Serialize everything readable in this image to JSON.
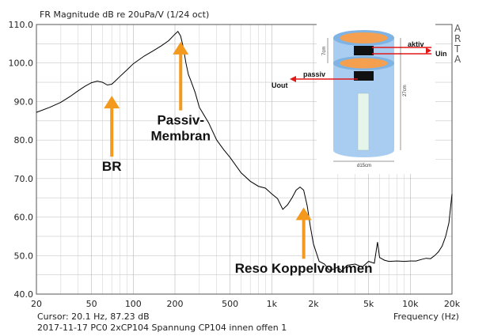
{
  "chart_data": {
    "type": "line",
    "title": "FR Magnitude dB re 20uPa/V (1/24 oct)",
    "xlabel": "Frequency (Hz)",
    "ylabel": "",
    "xscale": "log",
    "xlim": [
      20,
      20000
    ],
    "ylim": [
      40,
      110
    ],
    "grid": true,
    "y_ticks": [
      "40.0",
      "50.0",
      "60.0",
      "70.0",
      "80.0",
      "90.0",
      "100.0",
      "110.0"
    ],
    "x_ticks": [
      {
        "value": 20,
        "label": "20"
      },
      {
        "value": 50,
        "label": "50"
      },
      {
        "value": 100,
        "label": "100"
      },
      {
        "value": 200,
        "label": "200"
      },
      {
        "value": 500,
        "label": "500"
      },
      {
        "value": 1000,
        "label": "1k"
      },
      {
        "value": 2000,
        "label": "2k"
      },
      {
        "value": 5000,
        "label": "5k"
      },
      {
        "value": 10000,
        "label": "10k"
      },
      {
        "value": 20000,
        "label": "20k"
      }
    ],
    "series": [
      {
        "color": "#000000",
        "x": [
          20,
          25,
          30,
          35,
          40,
          45,
          50,
          55,
          60,
          65,
          70,
          75,
          80,
          90,
          100,
          120,
          140,
          160,
          180,
          200,
          210,
          220,
          230,
          240,
          250,
          260,
          280,
          300,
          350,
          400,
          450,
          500,
          600,
          700,
          800,
          900,
          1000,
          1100,
          1200,
          1300,
          1400,
          1500,
          1600,
          1700,
          1800,
          1900,
          2000,
          2200,
          2400,
          2600,
          2800,
          3000,
          3200,
          3500,
          4000,
          4500,
          5000,
          5500,
          5800,
          6000,
          6500,
          7000,
          8000,
          9000,
          10000,
          11000,
          12000,
          13000,
          14000,
          15000,
          16000,
          17000,
          18000,
          19000,
          20000
        ],
        "y": [
          87.2,
          88.5,
          89.8,
          91.3,
          92.8,
          94.0,
          94.9,
          95.3,
          95.0,
          94.3,
          94.5,
          95.5,
          96.5,
          98.2,
          99.8,
          101.8,
          103.2,
          104.5,
          105.8,
          107.5,
          108.2,
          107.0,
          104.0,
          100.0,
          97.0,
          95.5,
          92.3,
          88.5,
          84.5,
          80.0,
          77.5,
          75.5,
          71.5,
          69.3,
          68.0,
          67.5,
          66.0,
          64.8,
          62.0,
          63.2,
          65.0,
          67.0,
          67.8,
          67.0,
          63.0,
          57.5,
          53.0,
          48.5,
          47.8,
          46.2,
          46.5,
          47.0,
          46.0,
          47.5,
          47.8,
          47.0,
          48.5,
          48.0,
          53.5,
          49.5,
          48.8,
          48.5,
          48.6,
          48.5,
          48.6,
          48.6,
          49.0,
          49.3,
          49.2,
          50.0,
          51.0,
          52.5,
          55.0,
          58.5,
          66.0
        ]
      }
    ],
    "annotations": [
      {
        "text": "BR",
        "arrow_to": [
          70,
          91.5
        ],
        "text_at": [
          70,
          72
        ],
        "color": "#f39a1e"
      },
      {
        "text": "Passiv-",
        "text2": "Membran",
        "arrow_to": [
          220,
          105.5
        ],
        "text_at": [
          220,
          84
        ],
        "color": "#f39a1e"
      },
      {
        "text": "Reso Koppelvolumen",
        "arrow_to": [
          1700,
          62.5
        ],
        "text_at": [
          1700,
          45.5
        ],
        "color": "#f39a1e"
      }
    ],
    "footer": {
      "cursor": "Cursor: 20.1 Hz, 87.23 dB",
      "info": "2017-11-17 PC0 2xCP104 Spannung CP104 innen offen 1"
    },
    "watermark": "ARTA",
    "inset": {
      "aktiv": "aktiv",
      "uin": "Uin",
      "passiv": "passiv",
      "uout": "Uout",
      "dim_7cm": "7cm",
      "dim_27cm": "27cm",
      "dim_d15": "d15cm"
    },
    "colors": {
      "grid": "#c8c8c8",
      "axis": "#555555",
      "arrow": "#f39a1e",
      "cylinder": "#a9cdf0",
      "membrane": "#f4a050",
      "red_arrow": "#e01818"
    }
  }
}
